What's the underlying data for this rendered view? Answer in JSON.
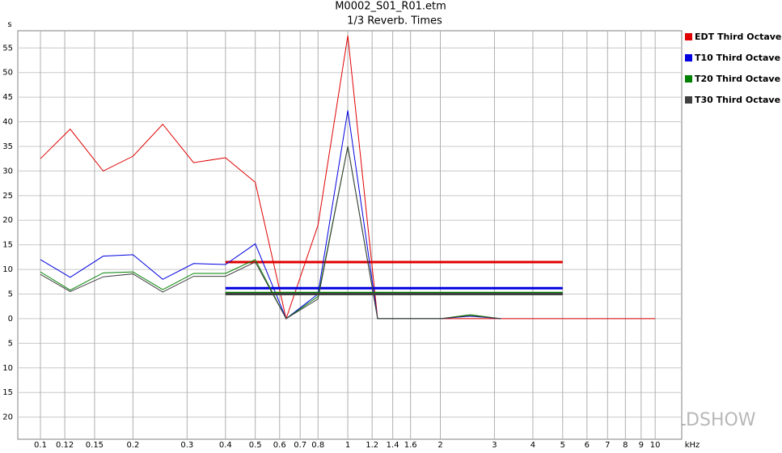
{
  "chart_data": {
    "type": "line",
    "title": "M0002_S01_R01.etm",
    "subtitle": "1/3 Reverb. Times",
    "y_label": "s",
    "x_label": "kHz",
    "watermark": "WORLDSHOW",
    "x_scale": "log",
    "grid": true,
    "legend": "right",
    "x": [
      0.1,
      0.125,
      0.16,
      0.2,
      0.25,
      0.315,
      0.4,
      0.5,
      0.63,
      0.8,
      1,
      1.25,
      1.6,
      2,
      2.5,
      3.15,
      4,
      5,
      6.3,
      8,
      10
    ],
    "series": [
      {
        "name": "EDT Third Octave",
        "color": "#e00000",
        "mean": 11.5,
        "mean_range": [
          0.4,
          5
        ],
        "values": [
          32.5,
          38.5,
          30,
          33,
          39.5,
          31.7,
          32.7,
          27.7,
          0,
          19,
          57.5,
          0,
          0,
          0,
          0,
          0,
          0,
          0,
          0,
          0,
          0
        ]
      },
      {
        "name": "T10 Third Octave",
        "color": "#0000e0",
        "mean": 6.2,
        "mean_range": [
          0.4,
          5
        ],
        "values": [
          12,
          8.4,
          12.7,
          13,
          8,
          11.2,
          11,
          15.2,
          0,
          5,
          42.3,
          0,
          0,
          0,
          0.5,
          0,
          null,
          null,
          null,
          null,
          null
        ]
      },
      {
        "name": "T20 Third Octave",
        "color": "#008000",
        "mean": 5.2,
        "mean_range": [
          0.4,
          5
        ],
        "values": [
          9.5,
          5.8,
          9.3,
          9.5,
          5.9,
          9.2,
          9.2,
          12,
          0,
          4.5,
          35,
          0,
          0,
          0,
          0.8,
          0,
          null,
          null,
          null,
          null,
          null
        ]
      },
      {
        "name": "T30 Third Octave",
        "color": "#404040",
        "mean": 5,
        "mean_range": [
          0.4,
          5
        ],
        "values": [
          9,
          5.5,
          8.5,
          9.1,
          5.4,
          8.6,
          8.6,
          11.5,
          0,
          4,
          35,
          0,
          0,
          0,
          0.6,
          0,
          null,
          null,
          null,
          null,
          null
        ]
      }
    ],
    "xlim": [
      0.0844,
      12.2
    ],
    "xticks": [
      0.1,
      0.12,
      0.15,
      0.2,
      0.3,
      0.4,
      0.5,
      0.6,
      0.7,
      0.8,
      1,
      1.2,
      1.4,
      1.6,
      2,
      3,
      4,
      5,
      6,
      7,
      8,
      9,
      10
    ],
    "ylim": [
      -24.5,
      58.5
    ],
    "yticks": [
      {
        "value": -20,
        "label": "20"
      },
      {
        "value": -15,
        "label": "15"
      },
      {
        "value": -10,
        "label": "10"
      },
      {
        "value": -5,
        "label": "5"
      },
      0,
      5,
      10,
      15,
      20,
      25,
      30,
      35,
      40,
      45,
      50,
      55
    ]
  }
}
